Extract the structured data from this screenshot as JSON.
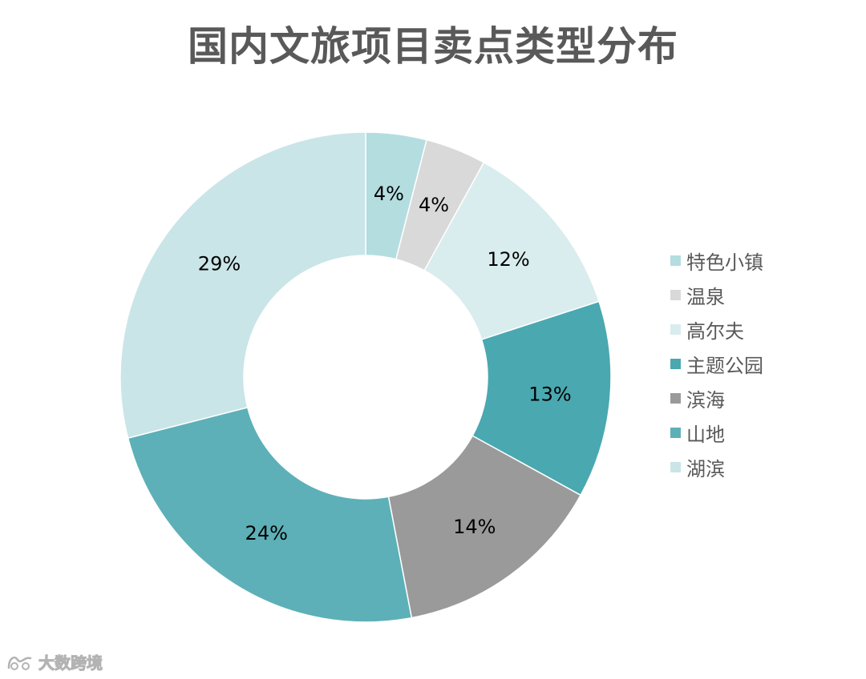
{
  "chart_data": {
    "type": "pie",
    "donut": true,
    "title": "国内文旅项目卖点类型分布",
    "categories": [
      "特色小镇",
      "温泉",
      "高尔夫",
      "主题公园",
      "滨海",
      "山地",
      "湖滨"
    ],
    "values": [
      4,
      4,
      12,
      13,
      14,
      24,
      29
    ],
    "data_labels": [
      "4%",
      "4%",
      "12%",
      "13%",
      "14%",
      "24%",
      "29%"
    ],
    "colors": [
      "#B4DDE0",
      "#D9D9D9",
      "#D9ECEE",
      "#4AA8B0",
      "#9A9A9A",
      "#5DB0B7",
      "#C9E5E8"
    ],
    "unit": "%",
    "legend_position": "right"
  },
  "watermark": {
    "text": "大数跨境"
  }
}
